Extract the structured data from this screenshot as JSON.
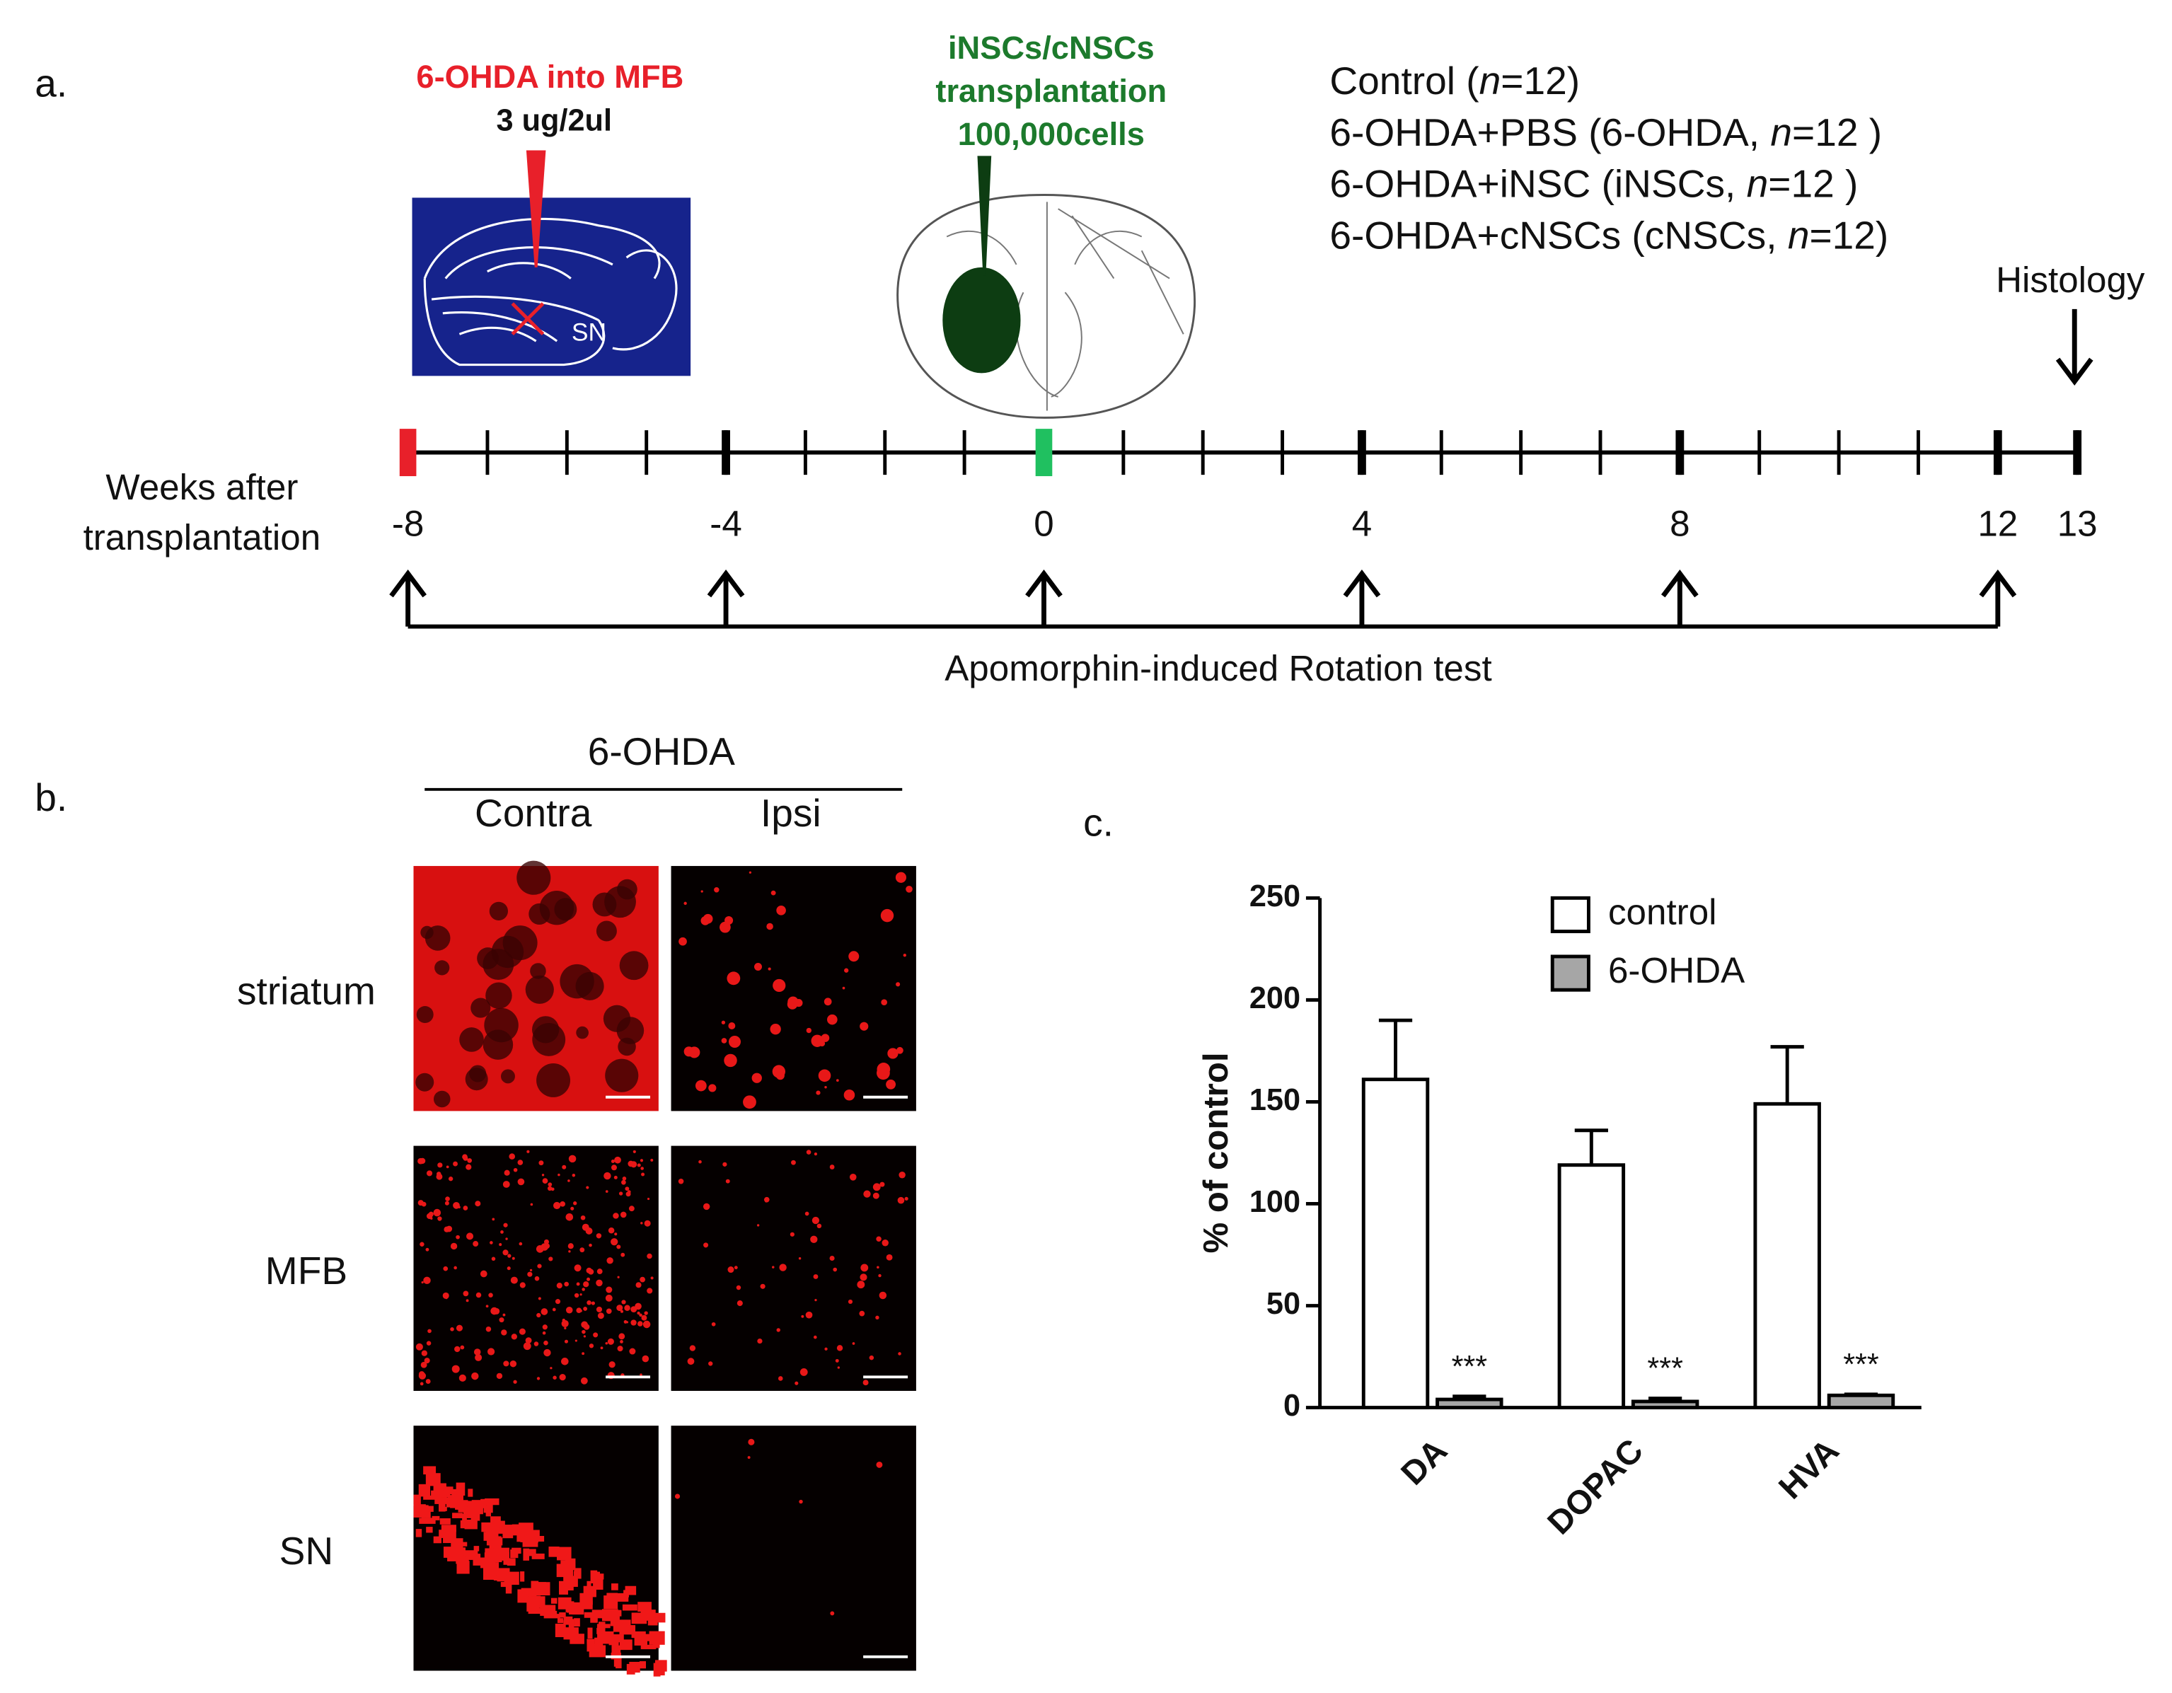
{
  "panel_a": {
    "label": "a.",
    "lesion": {
      "title": "6-OHDA into MFB",
      "dose": "3 ug/2ul",
      "region": "SN"
    },
    "transplant": {
      "lines": [
        "iNSCs/cNSCs",
        "transplantation",
        "100,000cells"
      ]
    },
    "groups": [
      [
        "Control (",
        "n",
        "=12)"
      ],
      [
        "6-OHDA+PBS (6-OHDA, ",
        "n",
        "=12 )"
      ],
      [
        "6-OHDA+iNSC (iNSCs, ",
        "n",
        "=12 )"
      ],
      [
        "6-OHDA+cNSCs (cNSCs, ",
        "n",
        "=12)"
      ]
    ],
    "histology": "Histology",
    "axis_title": [
      "Weeks after",
      "transplantation"
    ],
    "weeks_range": [
      -8,
      13
    ],
    "week_labels": [
      -8,
      -4,
      0,
      4,
      8,
      12,
      13
    ],
    "markers": [
      {
        "week": -8,
        "color": "#e8202a"
      },
      {
        "week": 0,
        "color": "#20c060"
      }
    ],
    "rotation_test": {
      "label": "Apomorphin-induced Rotation test",
      "weeks": [
        -8,
        -4,
        0,
        4,
        8,
        12
      ]
    }
  },
  "panel_b": {
    "label": "b.",
    "condition": "6-OHDA",
    "columns": [
      "Contra",
      "Ipsi"
    ],
    "rows": [
      "striatum",
      "MFB",
      "SN"
    ]
  },
  "panel_c": {
    "label": "c."
  },
  "chart_data": {
    "type": "bar",
    "ylabel": "% of control",
    "categories": [
      "DA",
      "DOPAC",
      "HVA"
    ],
    "series": [
      {
        "name": "control",
        "color": "#ffffff",
        "values": [
          161,
          119,
          149
        ],
        "errors": [
          29,
          17,
          28
        ]
      },
      {
        "name": "6-OHDA",
        "color": "#a6a6a6",
        "values": [
          4,
          3,
          6
        ],
        "errors": [
          1.5,
          1.5,
          0.5
        ]
      }
    ],
    "annotations": [
      "***",
      "***",
      "***"
    ],
    "ylim": [
      0,
      250
    ],
    "yticks": [
      0,
      50,
      100,
      150,
      200,
      250
    ]
  }
}
